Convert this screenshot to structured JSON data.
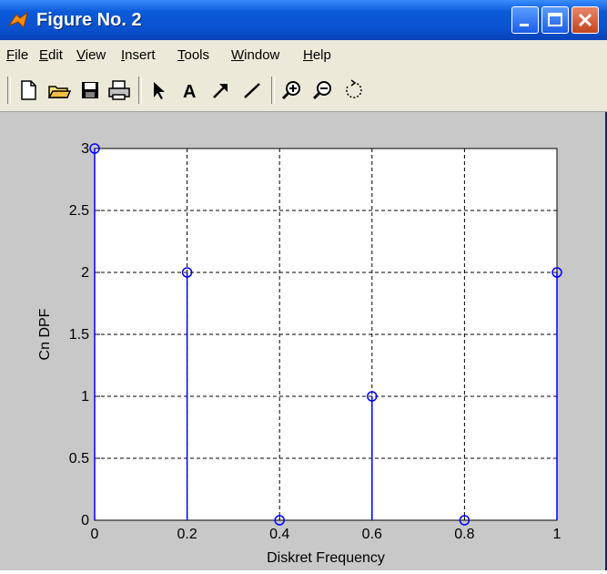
{
  "window": {
    "title": "Figure No. 2"
  },
  "menu": [
    {
      "label": "File",
      "u": "F"
    },
    {
      "label": "Edit",
      "u": "E"
    },
    {
      "label": "View",
      "u": "V"
    },
    {
      "label": "Insert",
      "u": "I"
    },
    {
      "label": "Tools",
      "u": "T"
    },
    {
      "label": "Window",
      "u": "W"
    },
    {
      "label": "Help",
      "u": "H"
    }
  ],
  "toolbar": {
    "icons": [
      "new-file-icon",
      "open-folder-icon",
      "save-icon",
      "print-icon",
      "select-arrow-icon",
      "text-icon",
      "arrow-icon",
      "line-icon",
      "zoom-in-icon",
      "zoom-out-icon",
      "rotate-icon"
    ]
  },
  "chart_data": {
    "type": "stem",
    "x": [
      0,
      0.2,
      0.4,
      0.6,
      0.8,
      1.0
    ],
    "values": [
      3,
      2,
      0,
      1,
      0,
      2
    ],
    "xlabel": "Diskret Frequency",
    "ylabel": "Cn DPF",
    "xlim": [
      0,
      1
    ],
    "ylim": [
      0,
      3
    ],
    "xticks": [
      "0",
      "0.2",
      "0.4",
      "0.6",
      "0.8",
      "1"
    ],
    "yticks": [
      "0",
      "0.5",
      "1",
      "1.5",
      "2",
      "2.5",
      "3"
    ],
    "grid": true,
    "color": "#0000ff"
  }
}
